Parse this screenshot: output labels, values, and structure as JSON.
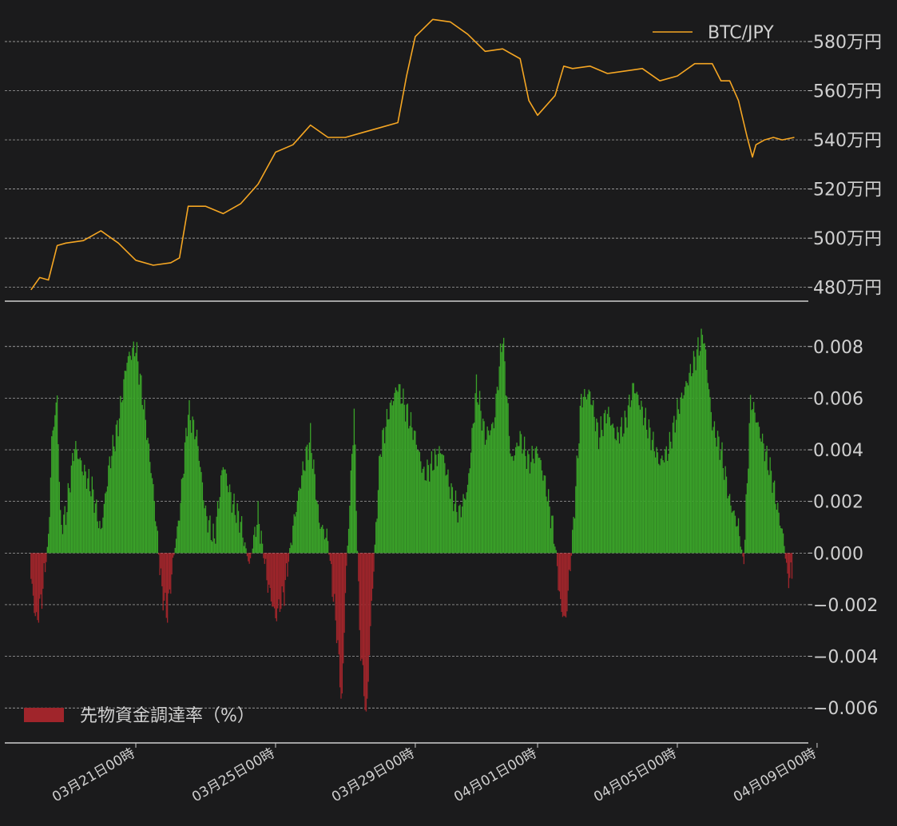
{
  "chart_data": [
    {
      "type": "line",
      "series": [
        {
          "name": "BTC/JPY",
          "color": "#f5a623",
          "points": [
            [
              0.0,
              479
            ],
            [
              0.5,
              484
            ],
            [
              1.0,
              483
            ],
            [
              1.5,
              497
            ],
            [
              2.0,
              498
            ],
            [
              3.0,
              499
            ],
            [
              4.0,
              503
            ],
            [
              5.0,
              498
            ],
            [
              6.0,
              491
            ],
            [
              7.0,
              489
            ],
            [
              8.0,
              490
            ],
            [
              8.5,
              492
            ],
            [
              9.0,
              513
            ],
            [
              10.0,
              513
            ],
            [
              11.0,
              510
            ],
            [
              12.0,
              514
            ],
            [
              13.0,
              522
            ],
            [
              14.0,
              535
            ],
            [
              15.0,
              538
            ],
            [
              16.0,
              546
            ],
            [
              17.0,
              541
            ],
            [
              18.0,
              541
            ],
            [
              19.0,
              543
            ],
            [
              20.0,
              545
            ],
            [
              21.0,
              547
            ],
            [
              21.5,
              566
            ],
            [
              22.0,
              582
            ],
            [
              23.0,
              589
            ],
            [
              24.0,
              588
            ],
            [
              25.0,
              583
            ],
            [
              26.0,
              576
            ],
            [
              27.0,
              577
            ],
            [
              28.0,
              573
            ],
            [
              28.5,
              556
            ],
            [
              29.0,
              550
            ],
            [
              30.0,
              558
            ],
            [
              30.5,
              570
            ],
            [
              31.0,
              569
            ],
            [
              32.0,
              570
            ],
            [
              33.0,
              567
            ],
            [
              34.0,
              568
            ],
            [
              35.0,
              569
            ],
            [
              36.0,
              564
            ],
            [
              37.0,
              566
            ],
            [
              38.0,
              571
            ],
            [
              39.0,
              571
            ],
            [
              39.5,
              564
            ],
            [
              40.0,
              564
            ],
            [
              40.5,
              556
            ],
            [
              41.0,
              541
            ],
            [
              41.3,
              533
            ],
            [
              41.5,
              538
            ],
            [
              42.0,
              540
            ],
            [
              42.5,
              541
            ],
            [
              43.0,
              540
            ],
            [
              43.7,
              541
            ]
          ]
        }
      ],
      "xlim": [
        -1.5,
        44.5
      ],
      "ylim": [
        476,
        593
      ],
      "yticks": [
        480,
        500,
        520,
        540,
        560,
        580
      ],
      "ytick_labels": [
        "480万円",
        "500万円",
        "520万円",
        "540万円",
        "560万円",
        "580万円"
      ],
      "grid": true,
      "legend": "top-right"
    },
    {
      "type": "bar",
      "series": [
        {
          "name": "先物資金調達率（%）",
          "positive_color": "#3aa329",
          "negative_color": "#a0252b",
          "points": [
            [
              0.0,
              -0.001
            ],
            [
              0.3,
              -0.0027
            ],
            [
              0.6,
              -0.0018
            ],
            [
              1.0,
              0.0005
            ],
            [
              1.2,
              0.0045
            ],
            [
              1.5,
              0.006
            ],
            [
              1.7,
              0.001
            ],
            [
              2.0,
              0.0015
            ],
            [
              2.5,
              0.0042
            ],
            [
              3.0,
              0.0032
            ],
            [
              3.5,
              0.0025
            ],
            [
              4.0,
              0.0008
            ],
            [
              4.5,
              0.0035
            ],
            [
              5.0,
              0.005
            ],
            [
              5.5,
              0.0075
            ],
            [
              6.0,
              0.008
            ],
            [
              6.5,
              0.0055
            ],
            [
              7.0,
              0.0025
            ],
            [
              7.5,
              -0.0015
            ],
            [
              7.8,
              -0.0024
            ],
            [
              8.2,
              0.0
            ],
            [
              8.5,
              0.0015
            ],
            [
              9.0,
              0.0055
            ],
            [
              9.5,
              0.0045
            ],
            [
              10.0,
              0.0015
            ],
            [
              10.5,
              0.0005
            ],
            [
              11.0,
              0.0035
            ],
            [
              11.5,
              0.002
            ],
            [
              12.0,
              0.0012
            ],
            [
              12.5,
              -0.0005
            ],
            [
              13.0,
              0.0015
            ],
            [
              13.5,
              -0.001
            ],
            [
              14.0,
              -0.0025
            ],
            [
              14.5,
              -0.0015
            ],
            [
              15.0,
              0.001
            ],
            [
              15.5,
              0.003
            ],
            [
              16.0,
              0.0045
            ],
            [
              16.5,
              0.0012
            ],
            [
              17.0,
              0.0005
            ],
            [
              17.5,
              -0.003
            ],
            [
              17.8,
              -0.006
            ],
            [
              18.0,
              -0.0015
            ],
            [
              18.5,
              0.0055
            ],
            [
              18.8,
              -0.003
            ],
            [
              19.2,
              -0.0065
            ],
            [
              19.5,
              -0.002
            ],
            [
              20.0,
              0.004
            ],
            [
              20.5,
              0.0055
            ],
            [
              21.0,
              0.0065
            ],
            [
              21.5,
              0.0055
            ],
            [
              22.0,
              0.0045
            ],
            [
              22.5,
              0.003
            ],
            [
              23.0,
              0.0035
            ],
            [
              23.5,
              0.004
            ],
            [
              24.0,
              0.0025
            ],
            [
              24.5,
              0.0015
            ],
            [
              25.0,
              0.0025
            ],
            [
              25.5,
              0.0065
            ],
            [
              26.0,
              0.0045
            ],
            [
              26.5,
              0.005
            ],
            [
              27.0,
              0.0085
            ],
            [
              27.5,
              0.0035
            ],
            [
              28.0,
              0.0045
            ],
            [
              28.5,
              0.0035
            ],
            [
              29.0,
              0.004
            ],
            [
              29.5,
              0.0025
            ],
            [
              30.0,
              0.0005
            ],
            [
              30.3,
              -0.002
            ],
            [
              30.6,
              -0.0027
            ],
            [
              31.0,
              0.0005
            ],
            [
              31.5,
              0.006
            ],
            [
              32.0,
              0.0062
            ],
            [
              32.5,
              0.0045
            ],
            [
              33.0,
              0.0055
            ],
            [
              33.5,
              0.0045
            ],
            [
              34.0,
              0.005
            ],
            [
              34.5,
              0.0065
            ],
            [
              35.0,
              0.0055
            ],
            [
              35.5,
              0.0045
            ],
            [
              36.0,
              0.0035
            ],
            [
              36.5,
              0.004
            ],
            [
              37.0,
              0.0055
            ],
            [
              37.5,
              0.0065
            ],
            [
              38.0,
              0.0075
            ],
            [
              38.5,
              0.0085
            ],
            [
              39.0,
              0.005
            ],
            [
              39.5,
              0.004
            ],
            [
              40.0,
              0.002
            ],
            [
              40.5,
              0.001
            ],
            [
              40.8,
              -0.0005
            ],
            [
              41.2,
              0.006
            ],
            [
              41.6,
              0.005
            ],
            [
              42.0,
              0.004
            ],
            [
              42.4,
              0.003
            ],
            [
              42.8,
              0.0015
            ],
            [
              43.1,
              0.0005
            ],
            [
              43.3,
              -0.001
            ],
            [
              43.6,
              -0.0008
            ]
          ]
        }
      ],
      "xlim": [
        -1.5,
        44.5
      ],
      "ylim": [
        -0.0072,
        0.0092
      ],
      "yticks": [
        -0.006,
        -0.004,
        -0.002,
        0.0,
        0.002,
        0.004,
        0.006,
        0.008
      ],
      "ytick_labels": [
        "−0.006",
        "−0.004",
        "−0.002",
        "0.000",
        "0.002",
        "0.004",
        "0.006",
        "0.008"
      ],
      "grid": true,
      "legend": "bottom-left"
    }
  ],
  "x_axis": {
    "ticks": [
      6,
      14,
      22,
      29,
      37,
      45
    ],
    "tick_labels": [
      "03月21日00時",
      "03月25日00時",
      "03月29日00時",
      "04月01日00時",
      "04月05日00時",
      "04月09日00時"
    ]
  },
  "style": {
    "background": "#1b1b1c",
    "grid_color": "#bdbdbd",
    "axis_line_color": "#cfcfcf",
    "text_color": "#d0d0d0"
  }
}
